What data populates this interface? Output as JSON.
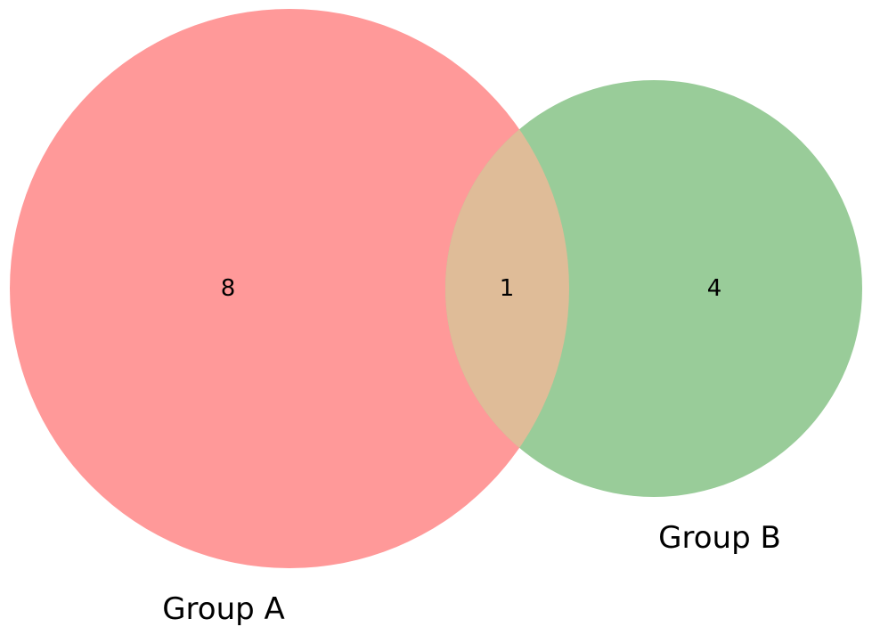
{
  "chart_data": {
    "type": "venn",
    "sets": [
      {
        "label": "Group A",
        "color": "#ff9999"
      },
      {
        "label": "Group B",
        "color": "#99cc99"
      }
    ],
    "intersection_color": "#dfbc98",
    "regions": {
      "a_only": "8",
      "intersection": "1",
      "b_only": "4"
    }
  }
}
